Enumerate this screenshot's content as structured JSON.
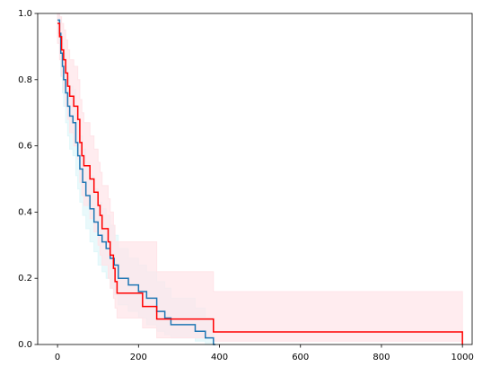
{
  "chart_data": {
    "type": "step",
    "xlim": [
      -49,
      1024
    ],
    "ylim": [
      0,
      1
    ],
    "xticks": [
      0,
      200,
      400,
      600,
      800,
      1000
    ],
    "yticks": [
      {
        "value": 0,
        "label": "0.0"
      },
      {
        "value": 0.2,
        "label": "0.2"
      },
      {
        "value": 0.4,
        "label": "0.4"
      },
      {
        "value": 0.6,
        "label": "0.6"
      },
      {
        "value": 0.8,
        "label": "0.8"
      },
      {
        "value": 1,
        "label": "1.0"
      }
    ],
    "series": [
      {
        "color": "#1f77b4",
        "band_color": "#e0f7fa",
        "x": [
          0,
          5,
          8,
          12,
          15,
          20,
          25,
          30,
          38,
          45,
          50,
          55,
          62,
          70,
          80,
          90,
          100,
          110,
          120,
          130,
          140,
          150,
          175,
          200,
          220,
          245,
          265,
          280,
          340,
          365,
          385,
          390
        ],
        "values": [
          0.98,
          0.94,
          0.88,
          0.84,
          0.8,
          0.76,
          0.72,
          0.69,
          0.67,
          0.61,
          0.57,
          0.53,
          0.49,
          0.45,
          0.41,
          0.37,
          0.33,
          0.31,
          0.29,
          0.26,
          0.24,
          0.2,
          0.18,
          0.16,
          0.14,
          0.1,
          0.08,
          0.06,
          0.04,
          0.02,
          0.0,
          0.0
        ],
        "ci_lower": [
          0.94,
          0.88,
          0.81,
          0.76,
          0.72,
          0.67,
          0.63,
          0.59,
          0.57,
          0.51,
          0.47,
          0.43,
          0.39,
          0.35,
          0.31,
          0.28,
          0.24,
          0.22,
          0.2,
          0.17,
          0.15,
          0.12,
          0.1,
          0.08,
          0.06,
          0.04,
          0.03,
          0.02,
          0.01,
          0,
          0,
          0
        ],
        "ci_upper": [
          1,
          0.98,
          0.94,
          0.91,
          0.88,
          0.84,
          0.81,
          0.78,
          0.77,
          0.71,
          0.67,
          0.63,
          0.59,
          0.55,
          0.51,
          0.47,
          0.43,
          0.41,
          0.39,
          0.36,
          0.33,
          0.29,
          0.26,
          0.24,
          0.22,
          0.19,
          0.17,
          0.14,
          0.11,
          0.08,
          0,
          0
        ]
      },
      {
        "color": "#ff0000",
        "band_color": "#ffe4e8",
        "x": [
          0,
          5,
          10,
          15,
          20,
          25,
          30,
          40,
          50,
          55,
          60,
          65,
          80,
          90,
          100,
          105,
          110,
          125,
          130,
          138,
          142,
          147,
          210,
          245,
          385,
          1000
        ],
        "values": [
          0.97,
          0.93,
          0.89,
          0.86,
          0.82,
          0.78,
          0.75,
          0.72,
          0.68,
          0.61,
          0.57,
          0.54,
          0.5,
          0.46,
          0.42,
          0.39,
          0.35,
          0.31,
          0.27,
          0.23,
          0.19,
          0.155,
          0.115,
          0.077,
          0.038,
          0
        ],
        "ci_lower": [
          0.91,
          0.86,
          0.81,
          0.77,
          0.72,
          0.68,
          0.64,
          0.6,
          0.56,
          0.49,
          0.45,
          0.42,
          0.38,
          0.34,
          0.3,
          0.27,
          0.24,
          0.2,
          0.17,
          0.14,
          0.11,
          0.08,
          0.05,
          0.02,
          0.01,
          0
        ],
        "ci_upper": [
          1,
          0.99,
          0.97,
          0.95,
          0.92,
          0.89,
          0.86,
          0.84,
          0.8,
          0.74,
          0.7,
          0.67,
          0.63,
          0.59,
          0.55,
          0.52,
          0.48,
          0.44,
          0.4,
          0.36,
          0.31,
          0.31,
          0.31,
          0.22,
          0.16,
          0
        ]
      }
    ]
  }
}
